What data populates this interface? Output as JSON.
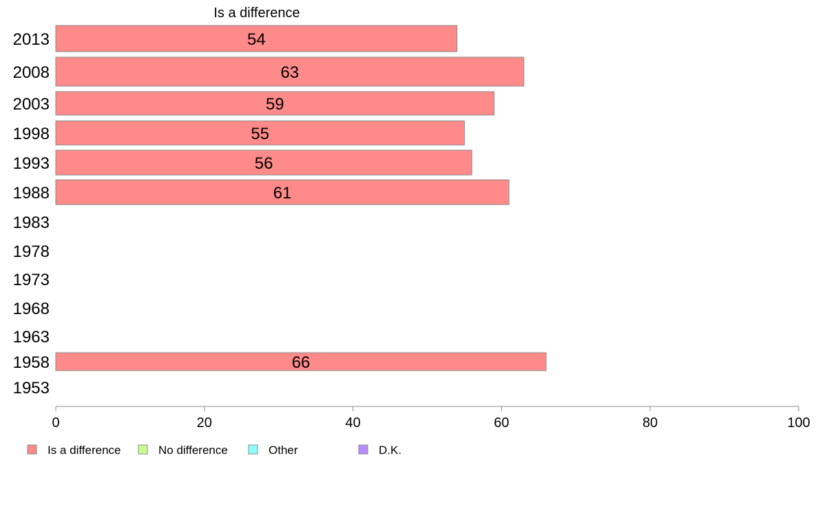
{
  "chart_data": {
    "type": "bar",
    "orientation": "horizontal",
    "title": "Is a difference",
    "categories": [
      "2013",
      "2008",
      "2003",
      "1998",
      "1993",
      "1988",
      "1983",
      "1978",
      "1973",
      "1968",
      "1963",
      "1958",
      "1953"
    ],
    "series": [
      {
        "name": "Is a difference",
        "color": "#ff8a8a",
        "values": [
          54,
          63,
          59,
          55,
          56,
          61,
          null,
          null,
          null,
          null,
          null,
          66,
          null
        ]
      }
    ],
    "data_labels": [
      "54",
      "63",
      "59",
      "55",
      "56",
      "61",
      "",
      "",
      "",
      "",
      "",
      "66",
      ""
    ],
    "xlim": [
      0,
      100
    ],
    "xticks": [
      0,
      20,
      40,
      60,
      80,
      100
    ],
    "xtick_labels": [
      "0",
      "20",
      "40",
      "60",
      "80",
      "100"
    ],
    "grid": false,
    "legend": {
      "position": "bottom",
      "entries": [
        {
          "label": "Is a difference",
          "color": "#ff8a8a"
        },
        {
          "label": "No difference",
          "color": "#c8ff8c"
        },
        {
          "label": "Other",
          "color": "#8cffff"
        },
        {
          "label": "D.K.",
          "color": "#b98cff"
        }
      ]
    }
  }
}
